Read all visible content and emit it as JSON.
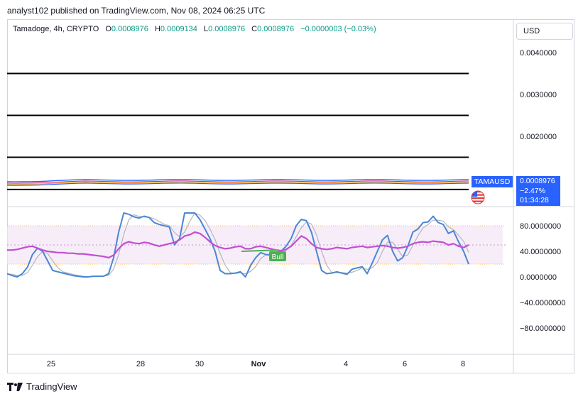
{
  "header": {
    "text": "analyst102 published on TradingView.com, Nov 08, 2024 06:25 UTC"
  },
  "symbol_bar": {
    "name": "Tamadoge, 4h, CRYPTO",
    "o_label": "O",
    "o_value": "0.0008976",
    "h_label": "H",
    "h_value": "0.0009134",
    "l_label": "L",
    "l_value": "0.0008976",
    "c_label": "C",
    "c_value": "0.0008976",
    "change": "−0.0000003 (−0.03%)"
  },
  "currency_button": "USD",
  "price_tag": {
    "symbol": "TAMAUSD",
    "price": "0.0008976",
    "change": "−2.47%",
    "countdown": "01:34:28"
  },
  "bull_label": "Bull",
  "footer": {
    "brand": "TradingView"
  },
  "colors": {
    "accent": "#2962ff",
    "stoch_k": "#4a86d4",
    "stoch_d": "#b2b5be",
    "rsi": "#c04fd0",
    "bull": "#4caf50",
    "up": "#089981"
  },
  "chart_data": [
    {
      "type": "line",
      "name": "price-panel",
      "y_ticks": [
        "0.0040000",
        "0.0030000",
        "0.0020000"
      ],
      "ylim": [
        0.00078,
        0.0042
      ],
      "horizontal_levels": [
        0.0035,
        0.0025,
        0.0015,
        0.00073
      ],
      "x_ticks": [
        "25",
        "28",
        "30",
        "Nov",
        "4",
        "6",
        "8"
      ],
      "last_price": 0.0008976
    },
    {
      "type": "line",
      "name": "oscillator-panel",
      "y_ticks": [
        "80.0000000",
        "40.0000000",
        "0.0000000",
        "−40.0000000",
        "−80.0000000"
      ],
      "ylim": [
        -120,
        120
      ],
      "band_levels": [
        80,
        50,
        20
      ],
      "series": [
        {
          "values": [
            5,
            2,
            0,
            5,
            15,
            35,
            45,
            40,
            25,
            10,
            8,
            6,
            4,
            2,
            1,
            0,
            0,
            1,
            1,
            1,
            5,
            30,
            70,
            100,
            98,
            94,
            92,
            95,
            93,
            85,
            82,
            80,
            78,
            50,
            60,
            100,
            100,
            100,
            90,
            75,
            60,
            40,
            10,
            5,
            5,
            6,
            8,
            0,
            18,
            30,
            38,
            35,
            34,
            36,
            40,
            48,
            60,
            80,
            90,
            88,
            70,
            40,
            10,
            5,
            6,
            8,
            6,
            4,
            12,
            14,
            16,
            5,
            22,
            40,
            58,
            65,
            40,
            25,
            30,
            48,
            70,
            75,
            85,
            86,
            95,
            85,
            82,
            68,
            72,
            55,
            40,
            20
          ]
        },
        {
          "values": [
            42,
            42,
            43,
            45,
            47,
            48,
            45,
            42,
            40,
            39,
            38,
            38,
            37,
            37,
            36,
            36,
            35,
            34,
            33,
            32,
            30,
            34,
            44,
            52,
            55,
            53,
            52,
            54,
            53,
            50,
            48,
            50,
            52,
            54,
            58,
            64,
            66,
            70,
            68,
            62,
            55,
            49,
            46,
            44,
            45,
            47,
            48,
            44,
            44,
            47,
            48,
            46,
            44,
            42,
            41,
            43,
            48,
            56,
            64,
            60,
            52,
            46,
            44,
            43,
            44,
            46,
            45,
            44,
            46,
            47,
            48,
            46,
            47,
            48,
            49,
            48,
            46,
            45,
            46,
            48,
            52,
            54,
            55,
            54,
            56,
            55,
            54,
            50,
            52,
            48,
            46,
            50
          ]
        }
      ]
    }
  ]
}
